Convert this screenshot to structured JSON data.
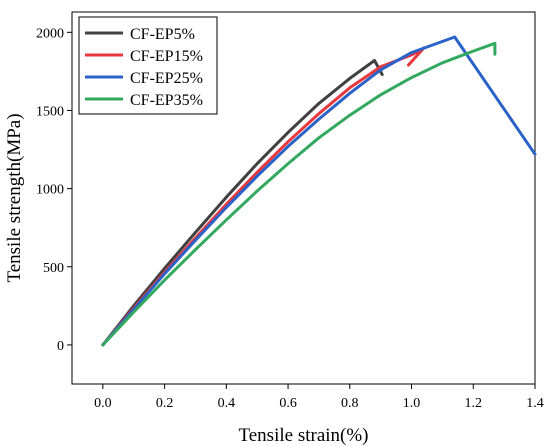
{
  "chart_data": {
    "type": "line",
    "xlabel": "Tensile strain(%)",
    "ylabel": "Tensile strength(MPa)",
    "xlim": [
      -0.1,
      1.4
    ],
    "ylim": [
      -250,
      2130
    ],
    "xticks": [
      0.0,
      0.2,
      0.4,
      0.6,
      0.8,
      1.0,
      1.2,
      1.4
    ],
    "xtick_labels": [
      "0.0",
      "0.2",
      "0.4",
      "0.6",
      "0.8",
      "1.0",
      "1.2",
      "1.4"
    ],
    "yticks": [
      0,
      500,
      1000,
      1500,
      2000
    ],
    "ytick_labels": [
      "0",
      "500",
      "1000",
      "1500",
      "2000"
    ],
    "grid": false,
    "legend_position": "top-left",
    "series": [
      {
        "name": "CF-EP5%",
        "color": "#404040",
        "points": [
          [
            0,
            0
          ],
          [
            0.1,
            250
          ],
          [
            0.2,
            490
          ],
          [
            0.3,
            720
          ],
          [
            0.4,
            945
          ],
          [
            0.5,
            1160
          ],
          [
            0.6,
            1360
          ],
          [
            0.7,
            1545
          ],
          [
            0.8,
            1705
          ],
          [
            0.88,
            1820
          ],
          [
            0.905,
            1730
          ]
        ]
      },
      {
        "name": "CF-EP15%",
        "color": "#e8383d",
        "points": [
          [
            0,
            0
          ],
          [
            0.1,
            235
          ],
          [
            0.2,
            465
          ],
          [
            0.3,
            685
          ],
          [
            0.4,
            900
          ],
          [
            0.5,
            1105
          ],
          [
            0.6,
            1300
          ],
          [
            0.7,
            1480
          ],
          [
            0.8,
            1645
          ],
          [
            0.9,
            1780
          ],
          [
            1.0,
            1855
          ],
          [
            1.04,
            1900
          ],
          [
            0.99,
            1790
          ]
        ]
      },
      {
        "name": "CF-EP25%",
        "color": "#2a62c8",
        "points": [
          [
            0,
            0
          ],
          [
            0.1,
            228
          ],
          [
            0.2,
            455
          ],
          [
            0.3,
            670
          ],
          [
            0.4,
            880
          ],
          [
            0.5,
            1080
          ],
          [
            0.6,
            1270
          ],
          [
            0.7,
            1445
          ],
          [
            0.8,
            1610
          ],
          [
            0.9,
            1760
          ],
          [
            1.0,
            1870
          ],
          [
            1.14,
            1970
          ],
          [
            1.4,
            1220
          ]
        ]
      },
      {
        "name": "CF-EP35%",
        "color": "#33a95f",
        "points": [
          [
            0,
            0
          ],
          [
            0.1,
            210
          ],
          [
            0.2,
            415
          ],
          [
            0.3,
            610
          ],
          [
            0.4,
            800
          ],
          [
            0.5,
            985
          ],
          [
            0.6,
            1160
          ],
          [
            0.7,
            1325
          ],
          [
            0.8,
            1470
          ],
          [
            0.9,
            1600
          ],
          [
            1.0,
            1710
          ],
          [
            1.1,
            1805
          ],
          [
            1.2,
            1880
          ],
          [
            1.27,
            1930
          ],
          [
            1.27,
            1860
          ]
        ]
      }
    ]
  }
}
